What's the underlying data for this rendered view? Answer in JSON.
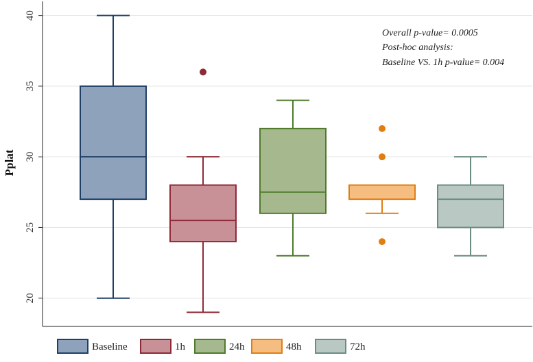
{
  "chart_data": {
    "type": "box",
    "title": "",
    "xlabel": "",
    "ylabel": "Pplat",
    "ylim": [
      18,
      41
    ],
    "yticks": [
      20,
      25,
      30,
      35,
      40
    ],
    "grid": true,
    "legend_position": "bottom",
    "annotations": [
      "Overall p-value= 0.0005",
      "Post-hoc analysis:",
      "Baseline VS. 1h p-value= 0.004"
    ],
    "series": [
      {
        "name": "Baseline",
        "min": 20,
        "q1": 27,
        "median": 30,
        "q3": 35,
        "max": 40,
        "outliers": [],
        "fill": "#8ea3bb",
        "stroke": "#1f3f66"
      },
      {
        "name": "1h",
        "min": 19,
        "q1": 24,
        "median": 25.5,
        "q3": 28,
        "max": 30,
        "outliers": [
          36
        ],
        "fill": "#c89198",
        "stroke": "#8e2a35"
      },
      {
        "name": "24h",
        "min": 23,
        "q1": 26,
        "median": 27.5,
        "q3": 32,
        "max": 34,
        "outliers": [],
        "fill": "#a6b98e",
        "stroke": "#4e7a2a"
      },
      {
        "name": "48h",
        "min": 26,
        "q1": 27,
        "median": 28,
        "q3": 28,
        "max": 28,
        "outliers": [
          24,
          30,
          32
        ],
        "fill": "#f5bd7f",
        "stroke": "#e07e13"
      },
      {
        "name": "72h",
        "min": 23,
        "q1": 25,
        "median": 27,
        "q3": 28,
        "max": 30,
        "outliers": [],
        "fill": "#b9c8c3",
        "stroke": "#6a8c83"
      }
    ]
  }
}
